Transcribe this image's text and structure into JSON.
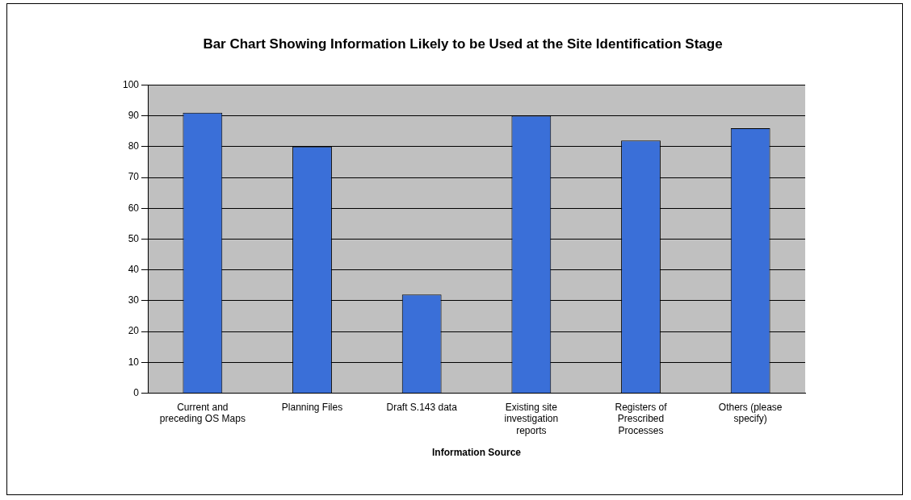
{
  "chart_data": {
    "type": "bar",
    "title": "Bar Chart Showing Information Likely to be Used at the Site Identification Stage",
    "xlabel": "Information Source",
    "categories": [
      "Current and preceding OS Maps",
      "Planning Files",
      "Draft S.143 data",
      "Existing site investigation reports",
      "Registers of Prescribed Processes",
      "Others (please specify)"
    ],
    "values": [
      91,
      80,
      32,
      90,
      82,
      86
    ],
    "color": "#3a6fd8",
    "ylim": [
      0,
      100
    ],
    "yticks": [
      0,
      10,
      20,
      30,
      40,
      50,
      60,
      70,
      80,
      90,
      100
    ],
    "grid": "y",
    "legend": false
  }
}
